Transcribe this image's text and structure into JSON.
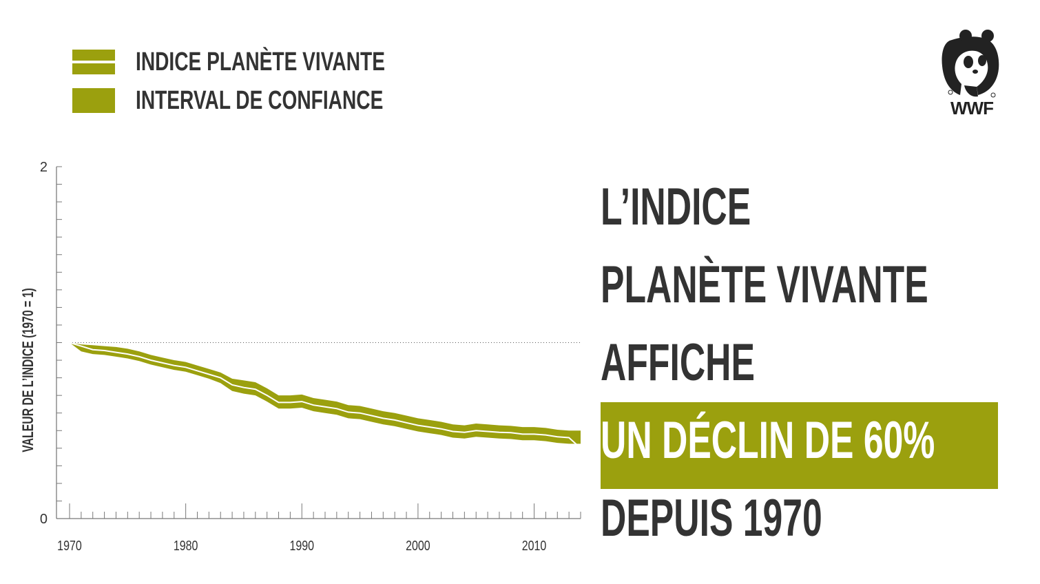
{
  "colors": {
    "accent": "#9ba00e",
    "text": "#333333",
    "index_line": "#ffffff"
  },
  "legend": {
    "items": [
      {
        "label": "INDICE PLANÈTE VIVANTE",
        "kind": "line"
      },
      {
        "label": "INTERVAL DE CONFIANCE",
        "kind": "band"
      }
    ]
  },
  "logo": {
    "icon": "panda-icon",
    "text": "WWF"
  },
  "headline": {
    "line1": "L’INDICE",
    "line2": "PLANÈTE VIVANTE",
    "line3": "AFFICHE",
    "line4": "UN DÉCLIN DE 60%",
    "line5": "DEPUIS 1970"
  },
  "chart_data": {
    "type": "area",
    "title": "",
    "xlabel": "",
    "ylabel": "VALEUR DE L’INDICE (1970 = 1)",
    "xlim": [
      1970,
      2014
    ],
    "ylim": [
      0,
      2
    ],
    "y_ticks": [
      0,
      2
    ],
    "x_ticks": [
      1970,
      1980,
      1990,
      2000,
      2010
    ],
    "reference_line": 1,
    "grid": false,
    "legend_position": "top-left",
    "x": [
      1970,
      1971,
      1972,
      1973,
      1974,
      1975,
      1976,
      1977,
      1978,
      1979,
      1980,
      1981,
      1982,
      1983,
      1984,
      1985,
      1986,
      1987,
      1988,
      1989,
      1990,
      1991,
      1992,
      1993,
      1994,
      1995,
      1996,
      1997,
      1998,
      1999,
      2000,
      2001,
      2002,
      2003,
      2004,
      2005,
      2006,
      2007,
      2008,
      2009,
      2010,
      2011,
      2012,
      2013,
      2014
    ],
    "series": [
      {
        "name": "INDICE PLANÈTE VIVANTE",
        "values": [
          1.0,
          0.98,
          0.96,
          0.955,
          0.945,
          0.935,
          0.92,
          0.9,
          0.885,
          0.87,
          0.86,
          0.84,
          0.82,
          0.8,
          0.76,
          0.745,
          0.735,
          0.7,
          0.66,
          0.66,
          0.665,
          0.645,
          0.635,
          0.625,
          0.605,
          0.6,
          0.585,
          0.57,
          0.56,
          0.545,
          0.53,
          0.52,
          0.51,
          0.495,
          0.49,
          0.5,
          0.495,
          0.49,
          0.488,
          0.48,
          0.48,
          0.475,
          0.465,
          0.46,
          0.4
        ]
      }
    ],
    "confidence_interval": {
      "name": "INTERVAL DE CONFIANCE",
      "lower": [
        1.0,
        0.95,
        0.935,
        0.93,
        0.92,
        0.91,
        0.895,
        0.875,
        0.86,
        0.845,
        0.835,
        0.815,
        0.795,
        0.77,
        0.725,
        0.71,
        0.7,
        0.665,
        0.625,
        0.625,
        0.63,
        0.61,
        0.6,
        0.59,
        0.57,
        0.565,
        0.55,
        0.535,
        0.525,
        0.51,
        0.495,
        0.485,
        0.475,
        0.46,
        0.455,
        0.465,
        0.46,
        0.455,
        0.452,
        0.445,
        0.445,
        0.44,
        0.43,
        0.425,
        0.425
      ],
      "upper": [
        1.0,
        0.99,
        0.985,
        0.98,
        0.975,
        0.965,
        0.95,
        0.93,
        0.915,
        0.9,
        0.89,
        0.87,
        0.85,
        0.83,
        0.795,
        0.785,
        0.775,
        0.74,
        0.7,
        0.7,
        0.705,
        0.685,
        0.675,
        0.665,
        0.645,
        0.64,
        0.625,
        0.61,
        0.6,
        0.585,
        0.57,
        0.56,
        0.55,
        0.535,
        0.53,
        0.54,
        0.535,
        0.53,
        0.527,
        0.52,
        0.52,
        0.515,
        0.505,
        0.5,
        0.5
      ]
    }
  }
}
